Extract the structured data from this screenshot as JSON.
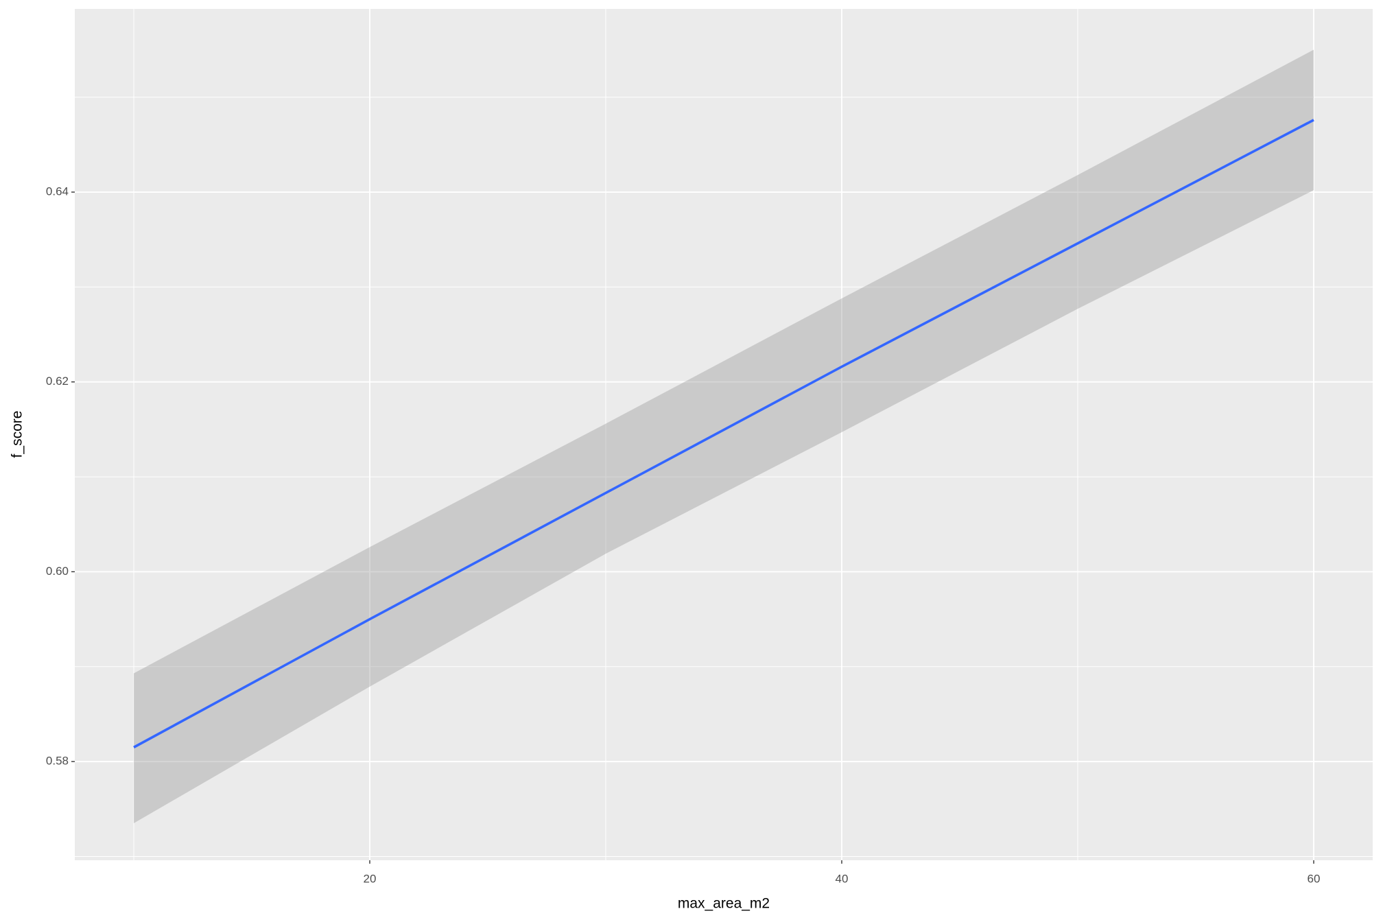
{
  "chart_data": {
    "type": "smooth",
    "x_label": "max_area_m2",
    "y_label": "f_score",
    "x": [
      10,
      20,
      30,
      40,
      50,
      60
    ],
    "series": [
      {
        "values": [
          0.5815,
          0.595,
          0.6083,
          0.6216,
          0.6346,
          0.6476
        ],
        "lower": [
          0.5735,
          0.5879,
          0.6019,
          0.6147,
          0.6277,
          0.6402
        ],
        "upper": [
          0.5893,
          0.6026,
          0.6156,
          0.6288,
          0.6418,
          0.655
        ],
        "color": "#3366FF",
        "band_color": "#999999"
      }
    ],
    "xlim": [
      7.5,
      62.5
    ],
    "ylim": [
      0.5696,
      0.6593
    ],
    "xticks": [
      20,
      40,
      60
    ],
    "yticks": [
      {
        "value": 0.58,
        "label": "0.58"
      },
      {
        "value": 0.6,
        "label": "0.60"
      },
      {
        "value": 0.62,
        "label": "0.62"
      },
      {
        "value": 0.64,
        "label": "0.64"
      }
    ],
    "x_minor_ticks": [
      10,
      30,
      50
    ],
    "y_minor_ticks": [
      0.57,
      0.59,
      0.61,
      0.63,
      0.65
    ],
    "grid": true,
    "panel_color": "#EBEBEB"
  }
}
